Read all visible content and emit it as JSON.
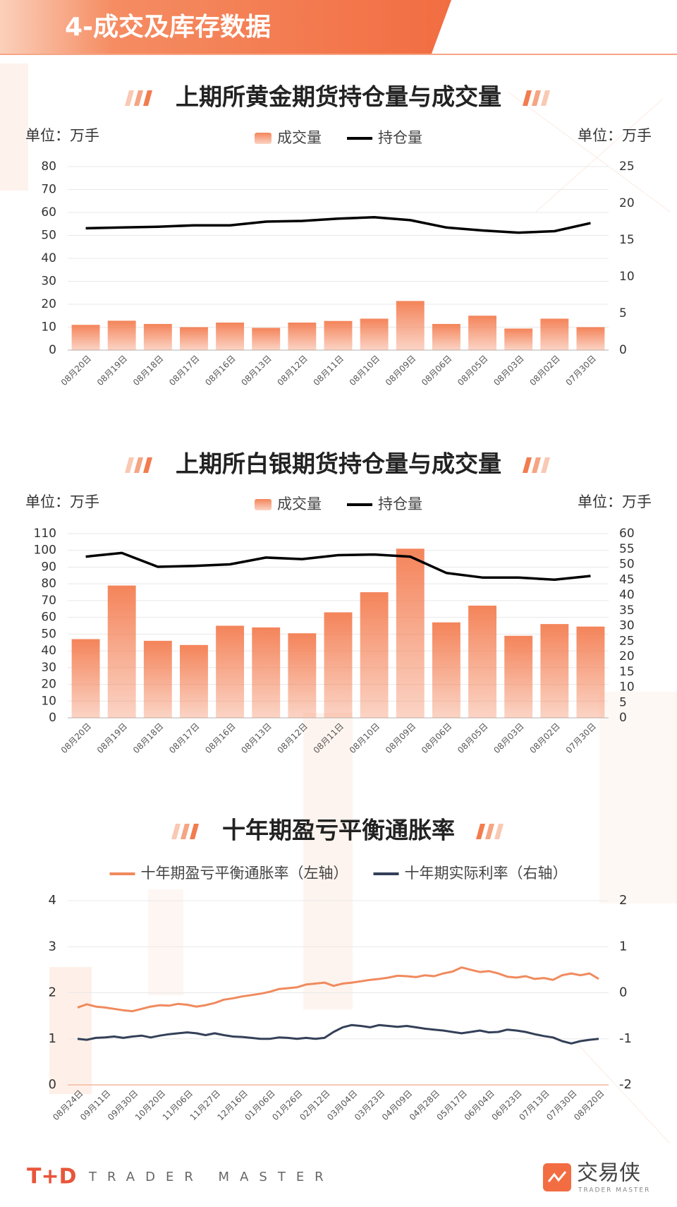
{
  "header": {
    "title": "4-成交及库存数据"
  },
  "chart_data": [
    {
      "type": "bar",
      "title": "上期所黄金期货持仓量与成交量",
      "y_unit_label": "单位：万手",
      "y2_unit_label": "单位：万手",
      "categories": [
        "08月20日",
        "08月19日",
        "08月18日",
        "08月17日",
        "08月16日",
        "08月13日",
        "08月12日",
        "08月11日",
        "08月10日",
        "08月09日",
        "08月06日",
        "08月05日",
        "08月03日",
        "08月02日",
        "07月30日"
      ],
      "series": [
        {
          "name": "成交量",
          "type": "bar",
          "color": "#f4845a",
          "values": [
            11,
            12.8,
            11.4,
            10,
            12,
            9.7,
            12,
            12.7,
            13.7,
            21.4,
            11.4,
            15,
            9.4,
            13.7,
            10
          ]
        },
        {
          "name": "持仓量",
          "type": "line",
          "axis": "y2",
          "color": "#000000",
          "values": [
            16.6,
            16.7,
            16.8,
            17.0,
            17.0,
            17.5,
            17.6,
            17.9,
            18.1,
            17.7,
            16.7,
            16.3,
            16.0,
            16.2,
            17.3
          ]
        }
      ],
      "ylim": [
        0,
        80
      ],
      "yticks": [
        0,
        10,
        20,
        30,
        40,
        50,
        60,
        70,
        80
      ],
      "y2lim": [
        0,
        25
      ],
      "y2ticks": [
        0,
        5,
        10,
        15,
        20,
        25
      ],
      "grid": true
    },
    {
      "type": "bar",
      "title": "上期所白银期货持仓量与成交量",
      "y_unit_label": "单位：万手",
      "y2_unit_label": "单位：万手",
      "categories": [
        "08月20日",
        "08月19日",
        "08月18日",
        "08月17日",
        "08月16日",
        "08月13日",
        "08月12日",
        "08月11日",
        "08月10日",
        "08月09日",
        "08月06日",
        "08月05日",
        "08月03日",
        "08月02日",
        "07月30日"
      ],
      "series": [
        {
          "name": "成交量",
          "type": "bar",
          "color": "#f4845a",
          "values": [
            47,
            79,
            46,
            43.5,
            55,
            54,
            50.5,
            63,
            75,
            101,
            57,
            67,
            49,
            56,
            54.5
          ]
        },
        {
          "name": "持仓量",
          "type": "line",
          "axis": "y2",
          "color": "#000000",
          "values": [
            52.5,
            53.7,
            49.2,
            49.5,
            50,
            52.2,
            51.7,
            53,
            53.2,
            52.5,
            47.2,
            45.7,
            45.7,
            45,
            46.2
          ]
        }
      ],
      "ylim": [
        0,
        110
      ],
      "yticks": [
        0,
        10,
        20,
        30,
        40,
        50,
        60,
        70,
        80,
        90,
        100,
        110
      ],
      "y2lim": [
        0,
        60
      ],
      "y2ticks": [
        0,
        5,
        10,
        15,
        20,
        25,
        30,
        35,
        40,
        45,
        50,
        55,
        60
      ],
      "grid": true
    },
    {
      "type": "line",
      "title": "十年期盈亏平衡通胀率",
      "categories": [
        "08月24日",
        null,
        null,
        "09月11日",
        null,
        null,
        "09月30日",
        null,
        null,
        "10月20日",
        null,
        null,
        "11月06日",
        null,
        null,
        "11月27日",
        null,
        null,
        "12月16日",
        null,
        null,
        "01月06日",
        null,
        null,
        "01月26日",
        null,
        null,
        "02月12日",
        null,
        null,
        "03月04日",
        null,
        null,
        "03月23日",
        null,
        null,
        "04月09日",
        null,
        null,
        "04月28日",
        null,
        null,
        "05月17日",
        null,
        null,
        "06月04日",
        null,
        null,
        "06月23日",
        null,
        null,
        "07月13日",
        null,
        null,
        "07月30日",
        null,
        null,
        "08月20日"
      ],
      "series": [
        {
          "name": "十年期盈亏平衡通胀率（左轴）",
          "color": "#f08a5d",
          "values": [
            1.68,
            1.75,
            1.7,
            1.68,
            1.65,
            1.62,
            1.6,
            1.65,
            1.7,
            1.73,
            1.72,
            1.76,
            1.74,
            1.7,
            1.73,
            1.78,
            1.85,
            1.88,
            1.92,
            1.95,
            1.98,
            2.02,
            2.08,
            2.1,
            2.12,
            2.18,
            2.2,
            2.22,
            2.15,
            2.2,
            2.22,
            2.25,
            2.28,
            2.3,
            2.33,
            2.37,
            2.36,
            2.34,
            2.38,
            2.36,
            2.42,
            2.46,
            2.55,
            2.5,
            2.45,
            2.47,
            2.42,
            2.35,
            2.33,
            2.36,
            2.3,
            2.32,
            2.28,
            2.38,
            2.42,
            2.38,
            2.42,
            2.3
          ]
        },
        {
          "name": "十年期实际利率（右轴）",
          "axis": "y2",
          "color": "#344058",
          "values": [
            -1.0,
            -1.02,
            -0.98,
            -0.97,
            -0.95,
            -0.98,
            -0.95,
            -0.93,
            -0.97,
            -0.93,
            -0.9,
            -0.88,
            -0.86,
            -0.88,
            -0.92,
            -0.88,
            -0.92,
            -0.95,
            -0.96,
            -0.98,
            -1.0,
            -1.0,
            -0.97,
            -0.98,
            -1.0,
            -0.98,
            -1.0,
            -0.98,
            -0.85,
            -0.75,
            -0.7,
            -0.72,
            -0.75,
            -0.7,
            -0.72,
            -0.74,
            -0.72,
            -0.75,
            -0.78,
            -0.8,
            -0.82,
            -0.85,
            -0.88,
            -0.85,
            -0.82,
            -0.86,
            -0.85,
            -0.8,
            -0.82,
            -0.85,
            -0.9,
            -0.94,
            -0.97,
            -1.05,
            -1.1,
            -1.05,
            -1.02,
            -1.0
          ]
        }
      ],
      "ylim": [
        0,
        4
      ],
      "yticks": [
        0,
        1,
        2,
        3,
        4
      ],
      "y2lim": [
        -2,
        2
      ],
      "y2ticks": [
        -2,
        -1,
        0,
        1,
        2
      ],
      "grid": true
    }
  ],
  "footer": {
    "brand": "T+D",
    "tagline": "TRADER MASTER",
    "logo_text": "交易侠",
    "logo_sub": "TRADER MASTER"
  }
}
